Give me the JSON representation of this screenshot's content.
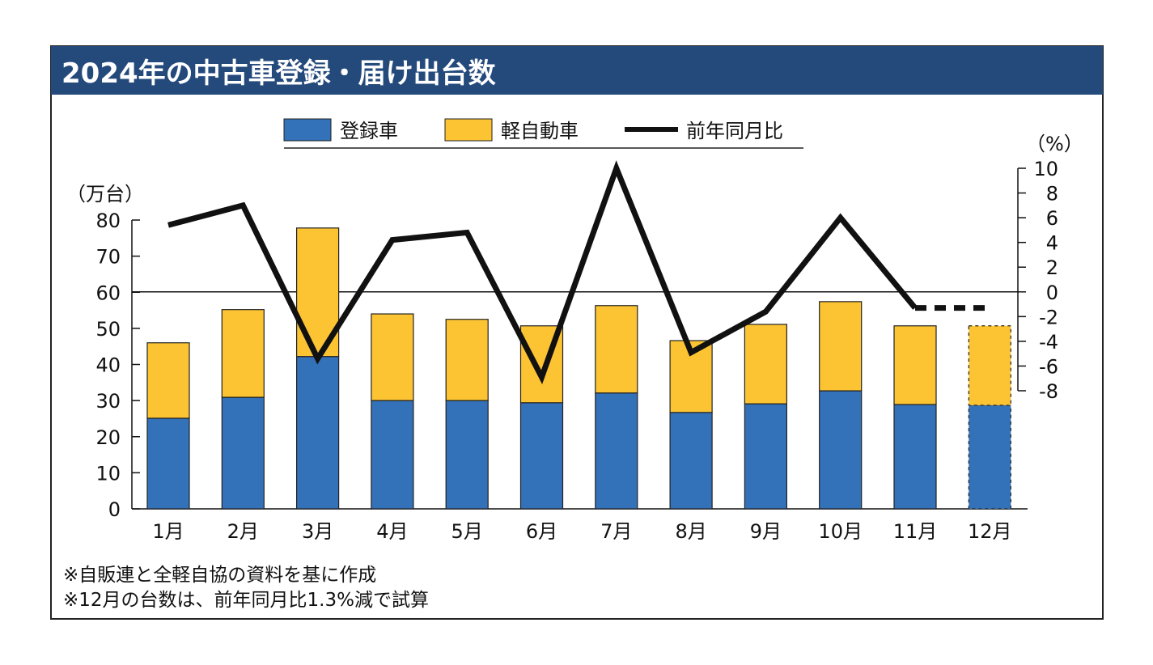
{
  "title": "2024年の中古車登録・届け出台数",
  "chart_data": {
    "type": "bar",
    "stacked": true,
    "title": "2024年の中古車登録・届け出台数",
    "categories": [
      "1月",
      "2月",
      "3月",
      "4月",
      "5月",
      "6月",
      "7月",
      "8月",
      "9月",
      "10月",
      "11月",
      "12月"
    ],
    "series": [
      {
        "name": "登録車",
        "type": "bar",
        "axis": "left",
        "color": "#3372b9",
        "values": [
          25.1,
          30.9,
          42.2,
          30.0,
          30.0,
          29.4,
          32.1,
          26.7,
          29.1,
          32.7,
          28.9,
          28.7
        ]
      },
      {
        "name": "軽自動車",
        "type": "bar",
        "axis": "left",
        "color": "#fcc433",
        "values": [
          20.9,
          24.3,
          35.6,
          24.0,
          22.5,
          21.3,
          24.2,
          19.9,
          22.0,
          24.7,
          21.8,
          22.0
        ]
      },
      {
        "name": "前年同月比",
        "type": "line",
        "axis": "right",
        "color": "#111111",
        "values": [
          5.4,
          7.0,
          -5.4,
          4.2,
          4.8,
          -6.9,
          10.0,
          -4.9,
          -1.6,
          6.0,
          -1.3,
          -1.3
        ]
      }
    ],
    "estimated_categories": [
      "12月"
    ],
    "left_axis": {
      "label": "（万台）",
      "ylim": [
        0,
        80
      ],
      "ticks": [
        0,
        10,
        20,
        30,
        40,
        50,
        60,
        70,
        80
      ]
    },
    "right_axis": {
      "label": "（%）",
      "ylim": [
        -8,
        10
      ],
      "ticks": [
        -8,
        -6,
        -4,
        -2,
        0,
        2,
        4,
        6,
        8,
        10
      ]
    },
    "legend_position": "top-center",
    "notes": [
      "※自販連と全軽自協の資料を基に作成",
      "※12月の台数は、前年同月比1.3%減で試算"
    ]
  }
}
